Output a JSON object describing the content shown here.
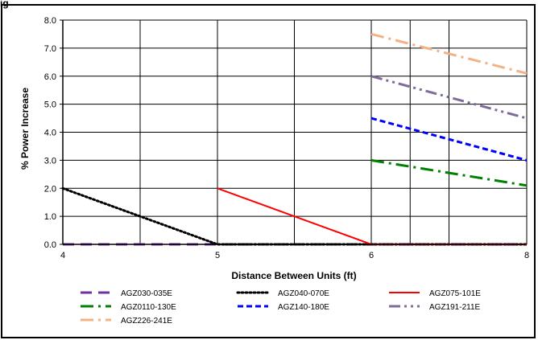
{
  "header": {
    "corner_label": "ig"
  },
  "chart_data": {
    "type": "line",
    "title": "",
    "xlabel": "Distance Between Units (ft)",
    "ylabel": "% Power Increase",
    "xticks": [
      4,
      5,
      6,
      8
    ],
    "xlim": [
      4,
      8
    ],
    "ylim": [
      0,
      8
    ],
    "yticks": [
      "0.0",
      "1.0",
      "2.0",
      "3.0",
      "4.0",
      "5.0",
      "6.0",
      "7.0",
      "8.0"
    ],
    "grid": true,
    "legend_position": "bottom",
    "series": [
      {
        "name": "AGZ030-035E",
        "color": "#7030a0",
        "dash": "long",
        "points": [
          [
            4,
            0
          ],
          [
            5,
            0
          ],
          [
            6,
            0
          ],
          [
            8,
            0
          ]
        ]
      },
      {
        "name": "AGZ040-070E",
        "color": "#000000",
        "dash": "dot",
        "points": [
          [
            4,
            2.0
          ],
          [
            5,
            0
          ],
          [
            6,
            0
          ],
          [
            8,
            0
          ]
        ]
      },
      {
        "name": "AGZ075-101E",
        "color": "#ff0000",
        "dash": "solid",
        "points": [
          [
            5,
            2.0
          ],
          [
            6,
            0
          ],
          [
            8,
            0
          ]
        ]
      },
      {
        "name": "AGZ0110-130E",
        "color": "#008000",
        "dash": "dashdot",
        "points": [
          [
            6,
            3.0
          ],
          [
            8,
            2.1
          ]
        ]
      },
      {
        "name": "AGZ140-180E",
        "color": "#0000ff",
        "dash": "dash",
        "points": [
          [
            6,
            4.5
          ],
          [
            8,
            3.0
          ]
        ]
      },
      {
        "name": "AGZ191-211E",
        "color": "#7f6a9a",
        "dash": "dashdotdot",
        "points": [
          [
            6,
            6.0
          ],
          [
            8,
            4.5
          ]
        ]
      },
      {
        "name": "AGZ226-241E",
        "color": "#f4b183",
        "dash": "dashdot",
        "points": [
          [
            6,
            7.5
          ],
          [
            8,
            6.1
          ]
        ]
      }
    ]
  }
}
